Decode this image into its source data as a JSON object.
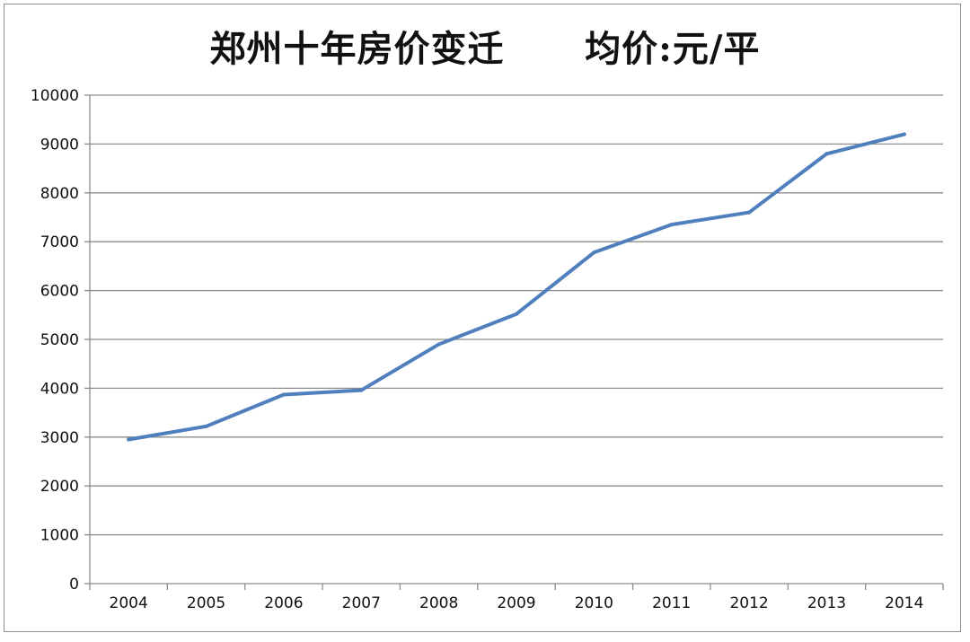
{
  "chart_data": {
    "type": "line",
    "title": "郑州十年房价变迁      均价:元/平",
    "xlabel": "",
    "ylabel": "",
    "categories": [
      "2004",
      "2005",
      "2006",
      "2007",
      "2008",
      "2009",
      "2010",
      "2011",
      "2012",
      "2013",
      "2014"
    ],
    "series": [
      {
        "values": [
          2950,
          3220,
          3870,
          3960,
          4900,
          5520,
          6780,
          7350,
          7600,
          8800,
          9200
        ]
      }
    ],
    "ylim": [
      0,
      10000
    ],
    "yticks": [
      "0",
      "1000",
      "2000",
      "3000",
      "4000",
      "5000",
      "6000",
      "7000",
      "8000",
      "9000",
      "10000"
    ],
    "grid": "horizontal",
    "legend": "none",
    "line_color": "#4f7fbd",
    "grid_color": "#8c8c8c"
  }
}
